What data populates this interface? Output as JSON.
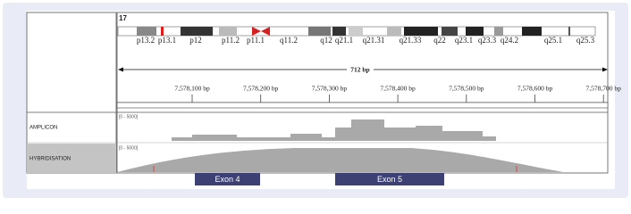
{
  "chromosome": "17",
  "bands": [
    "p13.2",
    "p13.1",
    "p12",
    "p11.2",
    "p11.1",
    "q11.2",
    "q12",
    "q21.1",
    "q21.31",
    "q21.33",
    "q22",
    "q23.1",
    "q23.3",
    "q24.2",
    "q25.1",
    "q25.3"
  ],
  "ruler": {
    "span": "712 bp",
    "ticks": [
      "7,578,100 bp",
      "7,578,200 bp",
      "7,578,300 bp",
      "7,578,400 bp",
      "7,578,500 bp",
      "7,578,600 bp",
      "7,578,700 bp"
    ]
  },
  "tracks": [
    {
      "name": "AMPLICON",
      "range": "[0 - 5000]"
    },
    {
      "name": "HYBRIDISATION",
      "range": "[0 - 5000]"
    }
  ],
  "exons": [
    "Exon 4",
    "Exon 5"
  ]
}
